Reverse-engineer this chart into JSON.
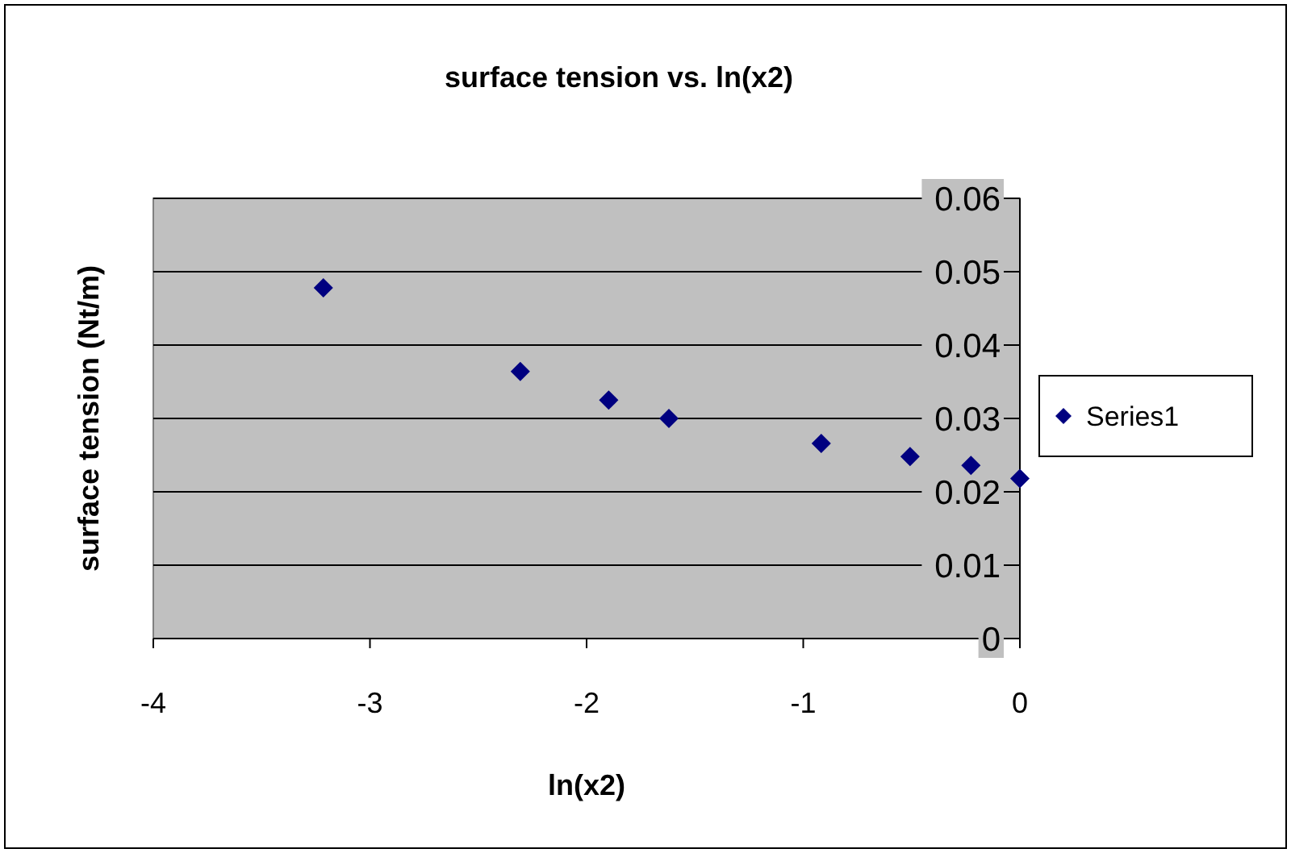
{
  "chart_data": {
    "type": "scatter",
    "title": "surface tension vs. ln(x2)",
    "xlabel": "ln(x2)",
    "ylabel": "surface tension (Nt/m)",
    "x": [
      -3.215,
      -2.306,
      -1.898,
      -1.62,
      -0.917,
      -0.507,
      -0.226,
      0
    ],
    "series": [
      {
        "name": "Series1",
        "color": "#000080",
        "values": [
          0.0478,
          0.0364,
          0.0325,
          0.03,
          0.0266,
          0.0248,
          0.0236,
          0.0218
        ]
      }
    ],
    "xlim": [
      -4,
      0
    ],
    "xticks": [
      -4,
      -3,
      -2,
      -1,
      0
    ],
    "ylim": [
      0,
      0.06
    ],
    "yticks": [
      0,
      0.01,
      0.02,
      0.03,
      0.04,
      0.05,
      0.06
    ],
    "grid": "y",
    "legend": "right",
    "marker": "diamond"
  }
}
